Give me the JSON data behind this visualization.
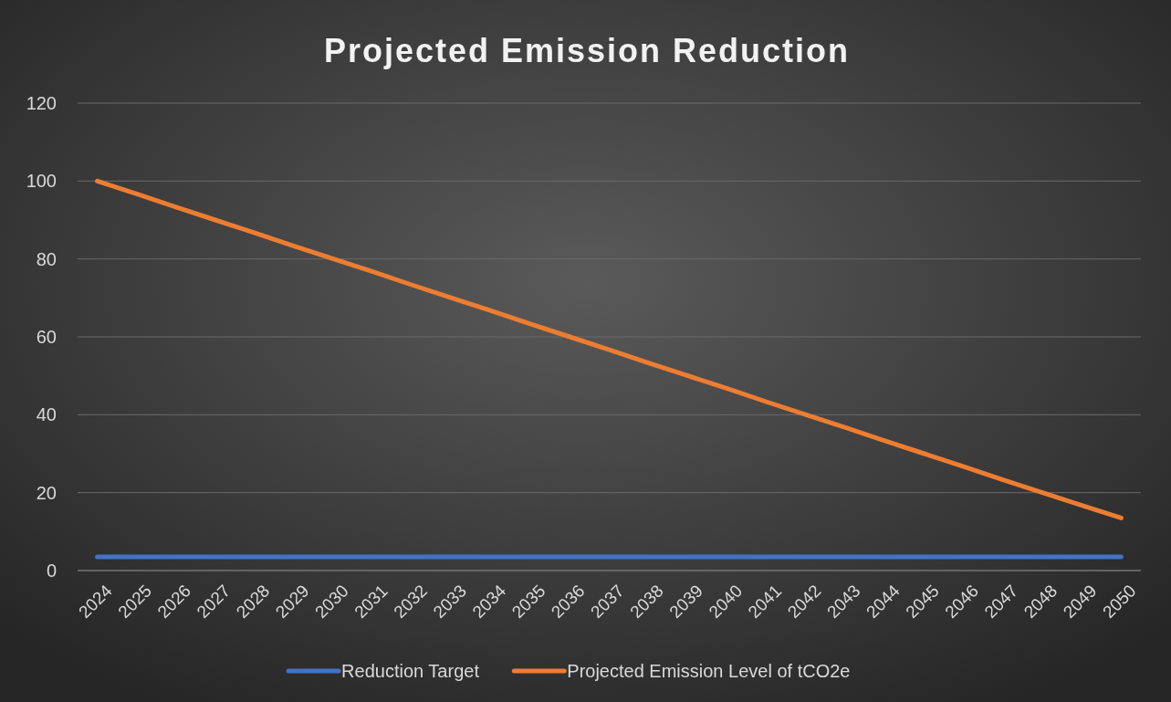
{
  "chart_data": {
    "type": "line",
    "title": "Projected Emission Reduction",
    "categories": [
      "2024",
      "2025",
      "2026",
      "2027",
      "2028",
      "2029",
      "2030",
      "2031",
      "2032",
      "2033",
      "2034",
      "2035",
      "2036",
      "2037",
      "2038",
      "2039",
      "2040",
      "2041",
      "2042",
      "2043",
      "2044",
      "2045",
      "2046",
      "2047",
      "2048",
      "2049",
      "2050"
    ],
    "series": [
      {
        "name": "Reduction Target",
        "color": "#4472c4",
        "values": [
          3.5,
          3.5,
          3.5,
          3.5,
          3.5,
          3.5,
          3.5,
          3.5,
          3.5,
          3.5,
          3.5,
          3.5,
          3.5,
          3.5,
          3.5,
          3.5,
          3.5,
          3.5,
          3.5,
          3.5,
          3.5,
          3.5,
          3.5,
          3.5,
          3.5,
          3.5,
          3.5
        ]
      },
      {
        "name": "Projected Emission Level of tCO2e",
        "color": "#ed7d31",
        "values": [
          100,
          96.7,
          93.3,
          90,
          86.7,
          83.3,
          80,
          76.7,
          73.3,
          70,
          66.7,
          63.3,
          60,
          56.7,
          53.3,
          50,
          46.7,
          43.3,
          40,
          36.7,
          33.3,
          30,
          26.7,
          23.3,
          20,
          16.7,
          13.5
        ]
      }
    ],
    "ylim": [
      0,
      120
    ],
    "yticks": [
      0,
      20,
      40,
      60,
      80,
      100,
      120
    ],
    "grid": "y",
    "legend": "bottom",
    "marker": "none",
    "line_style": "solid"
  }
}
